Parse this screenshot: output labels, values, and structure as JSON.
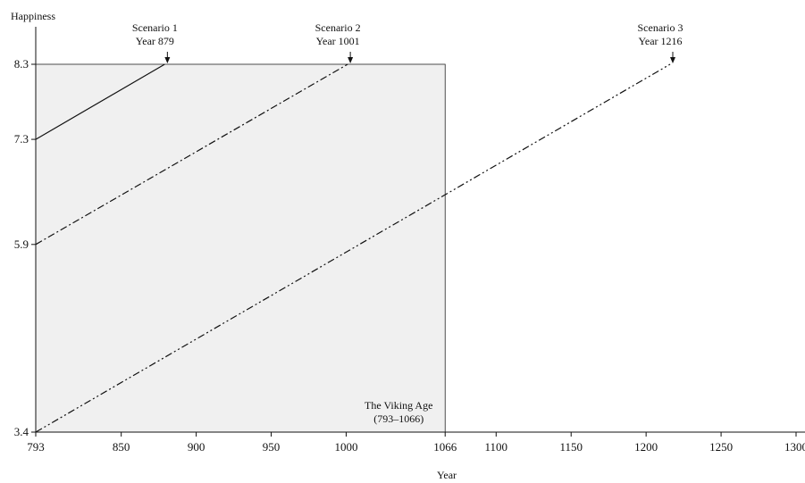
{
  "chart_data": {
    "type": "line",
    "xlabel": "Year",
    "ylabel": "Happiness",
    "xlim": [
      793,
      1300
    ],
    "ylim": [
      3.4,
      8.3
    ],
    "x_ticks": [
      "793",
      "850",
      "900",
      "950",
      "1000",
      "1066",
      "1100",
      "1150",
      "1200",
      "1250",
      "1300"
    ],
    "y_ticks": [
      "3.4",
      "5.9",
      "7.3",
      "8.3"
    ],
    "shaded_region": {
      "x": [
        793,
        1066
      ],
      "y": [
        3.4,
        8.3
      ],
      "fill": "#f0f0f0",
      "label_line1": "The Viking Age",
      "label_line2": "(793–1066)"
    },
    "series": [
      {
        "dash": "solid",
        "x": [
          793,
          879
        ],
        "y": [
          7.3,
          8.3
        ],
        "label_line1": "Scenario 1",
        "label_line2": "Year 879"
      },
      {
        "dash": "dash-dot",
        "x": [
          793,
          1001
        ],
        "y": [
          5.9,
          8.3
        ],
        "label_line1": "Scenario 2",
        "label_line2": "Year 1001"
      },
      {
        "dash": "dash-dot-dot",
        "x": [
          793,
          1216
        ],
        "y": [
          3.4,
          8.3
        ],
        "label_line1": "Scenario 3",
        "label_line2": "Year 1216"
      }
    ]
  }
}
